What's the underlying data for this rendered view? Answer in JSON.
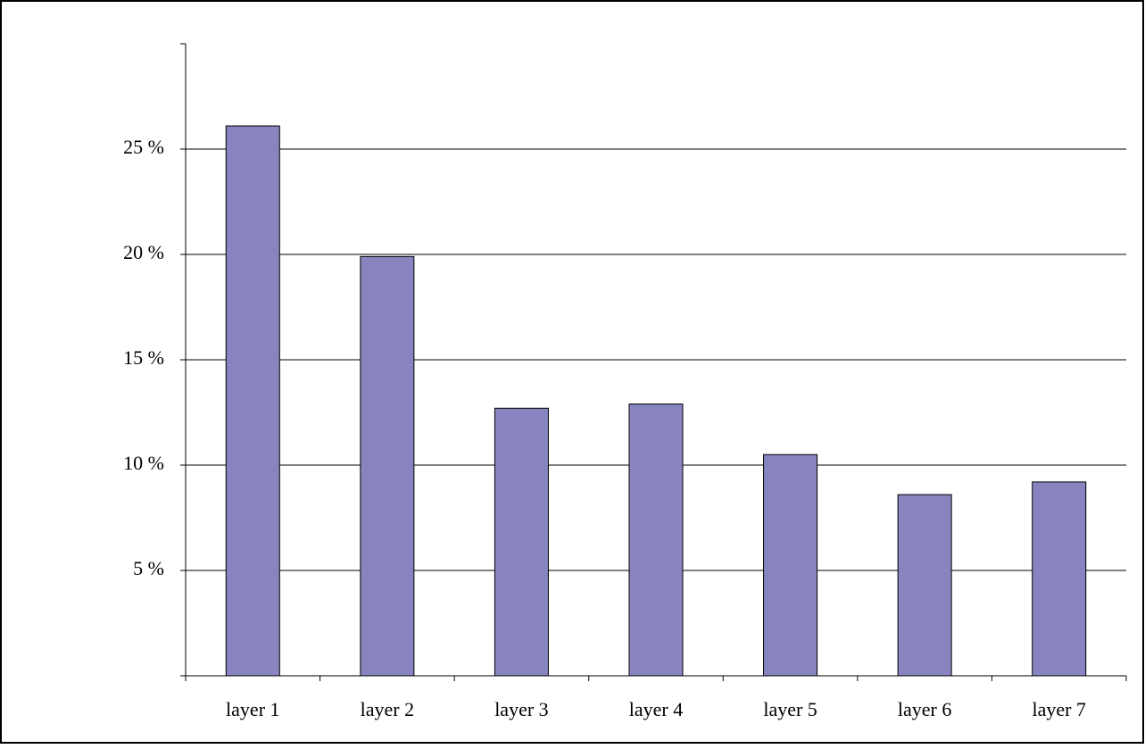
{
  "chart_data": {
    "type": "bar",
    "categories": [
      "layer 1",
      "layer 2",
      "layer 3",
      "layer 4",
      "layer 5",
      "layer 6",
      "layer 7"
    ],
    "values": [
      26.1,
      19.9,
      12.7,
      12.9,
      10.5,
      8.6,
      9.2
    ],
    "color": "#8884bf",
    "ylim": [
      0,
      30
    ],
    "yticks": [
      {
        "value": 5,
        "label": "5 %"
      },
      {
        "value": 10,
        "label": "10 %"
      },
      {
        "value": 15,
        "label": "15 %"
      },
      {
        "value": 20,
        "label": "20 %"
      },
      {
        "value": 25,
        "label": "25 %"
      }
    ],
    "grid": true
  }
}
